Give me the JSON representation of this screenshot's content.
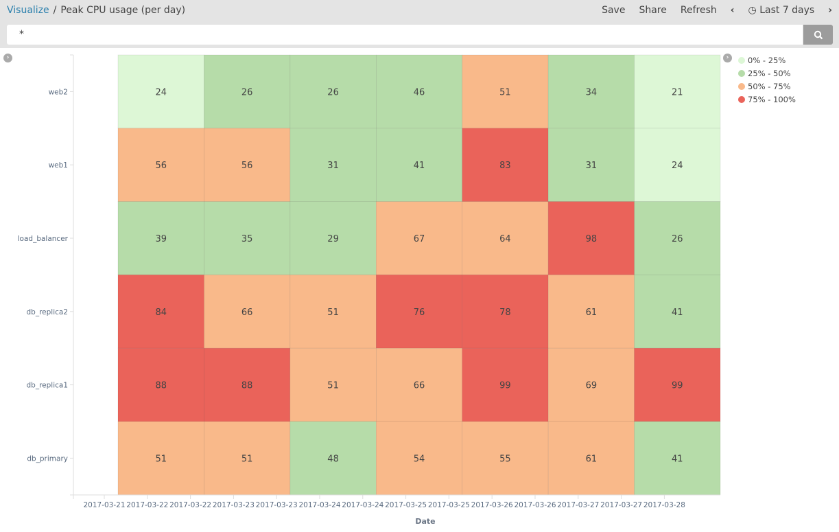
{
  "header": {
    "breadcrumb_root": "Visualize",
    "separator": "/",
    "title": "Peak CPU usage (per day)",
    "save": "Save",
    "share": "Share",
    "refresh": "Refresh",
    "time_range": "Last 7 days"
  },
  "search": {
    "query": "*"
  },
  "chart_data": {
    "type": "heatmap",
    "xlabel": "Date",
    "ylabel": "",
    "x_tick_labels": [
      "2017-03-21",
      "2017-03-22",
      "2017-03-22",
      "2017-03-23",
      "2017-03-23",
      "2017-03-24",
      "2017-03-24",
      "2017-03-25",
      "2017-03-25",
      "2017-03-26",
      "2017-03-26",
      "2017-03-27",
      "2017-03-27",
      "2017-03-28"
    ],
    "columns": [
      "2017-03-22",
      "2017-03-23",
      "2017-03-24",
      "2017-03-25",
      "2017-03-26",
      "2017-03-27",
      "2017-03-28"
    ],
    "rows": [
      "web2",
      "web1",
      "load_balancer",
      "db_replica2",
      "db_replica1",
      "db_primary"
    ],
    "values": [
      [
        24,
        26,
        26,
        46,
        51,
        34,
        21
      ],
      [
        56,
        56,
        31,
        41,
        83,
        31,
        24
      ],
      [
        39,
        35,
        29,
        67,
        64,
        98,
        26
      ],
      [
        84,
        66,
        51,
        76,
        78,
        61,
        41
      ],
      [
        88,
        88,
        51,
        66,
        99,
        69,
        99
      ],
      [
        51,
        51,
        48,
        54,
        55,
        61,
        41
      ]
    ],
    "legend": [
      {
        "label": "0% - 25%",
        "color": "#ddf7d6",
        "max": 25
      },
      {
        "label": "25% - 50%",
        "color": "#b6dca9",
        "max": 50
      },
      {
        "label": "50% - 75%",
        "color": "#f9b98a",
        "max": 75
      },
      {
        "label": "75% - 100%",
        "color": "#ea635a",
        "max": 100
      }
    ],
    "legend_position": "right"
  }
}
